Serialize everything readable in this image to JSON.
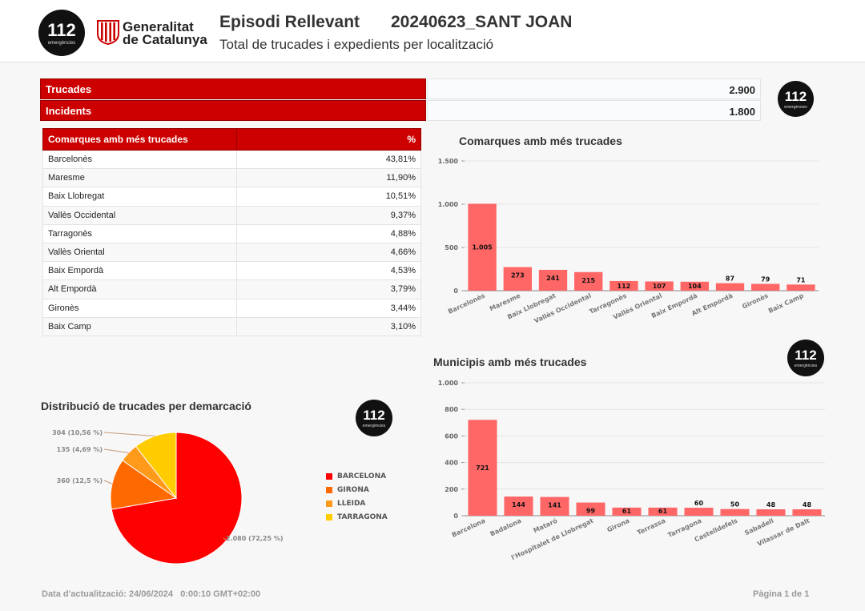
{
  "header": {
    "logo_112": "112",
    "logo_112_sub": "emergències",
    "gen_name_line1": "Generalitat",
    "gen_name_line2": "de Catalunya",
    "title": "Episodi Rellevant",
    "episode": "20240623_SANT JOAN",
    "subtitle": "Total de trucades i expedients per localització"
  },
  "kpis": {
    "trucades_label": "Trucades",
    "trucades_value": "2.900",
    "incidents_label": "Incidents",
    "incidents_value": "1.800"
  },
  "comarques_table": {
    "col_name": "Comarques amb més trucades",
    "col_pct": "%",
    "rows": [
      {
        "name": "Barcelonès",
        "pct": "43,81%"
      },
      {
        "name": "Maresme",
        "pct": "11,90%"
      },
      {
        "name": "Baix Llobregat",
        "pct": "10,51%"
      },
      {
        "name": "Vallès Occidental",
        "pct": "9,37%"
      },
      {
        "name": "Tarragonès",
        "pct": "4,88%"
      },
      {
        "name": "Vallès Oriental",
        "pct": "4,66%"
      },
      {
        "name": "Baix Empordà",
        "pct": "4,53%"
      },
      {
        "name": "Alt Empordà",
        "pct": "3,79%"
      },
      {
        "name": "Gironès",
        "pct": "3,44%"
      },
      {
        "name": "Baix Camp",
        "pct": "3,10%"
      }
    ]
  },
  "colors": {
    "accent": "#cc0000",
    "bar": "#ff6666",
    "barcelona": "#ff0000",
    "girona": "#ff6a00",
    "lleida": "#ff9a1a",
    "tarragona": "#ffcc00"
  },
  "chart_data": [
    {
      "id": "comarques",
      "type": "bar",
      "title": "Comarques amb més trucades",
      "categories": [
        "Barcelonès",
        "Maresme",
        "Baix Llobregat",
        "Vallès Occidental",
        "Tarragonès",
        "Vallès Oriental",
        "Baix Empordà",
        "Alt Empordà",
        "Gironès",
        "Baix Camp"
      ],
      "values": [
        1005,
        273,
        241,
        215,
        112,
        107,
        104,
        87,
        79,
        71
      ],
      "value_labels": [
        "1.005",
        "273",
        "241",
        "215",
        "112",
        "107",
        "104",
        "87",
        "79",
        "71"
      ],
      "yticks": [
        0,
        500,
        1000,
        1500
      ],
      "ytick_labels": [
        "0",
        "500",
        "1.000",
        "1.500"
      ],
      "ylim": [
        0,
        1500
      ],
      "grid": true
    },
    {
      "id": "municipis",
      "type": "bar",
      "title": "Municipis amb més trucades",
      "categories": [
        "Barcelona",
        "Badalona",
        "Mataró",
        "l'Hospitalet de Llobregat",
        "Girona",
        "Terrassa",
        "Tarragona",
        "Castelldefels",
        "Sabadell",
        "Vilassar de Dalt"
      ],
      "values": [
        721,
        144,
        141,
        99,
        61,
        61,
        60,
        50,
        48,
        48
      ],
      "value_labels": [
        "721",
        "144",
        "141",
        "99",
        "61",
        "61",
        "60",
        "50",
        "48",
        "48"
      ],
      "yticks": [
        0,
        200,
        400,
        600,
        800,
        1000
      ],
      "ytick_labels": [
        "0",
        "200",
        "400",
        "600",
        "800",
        "1.000"
      ],
      "ylim": [
        0,
        1000
      ],
      "grid": true
    },
    {
      "id": "demarcacio",
      "type": "pie",
      "title": "Distribució de trucades per demarcació",
      "categories": [
        "BARCELONA",
        "GIRONA",
        "LLEIDA",
        "TARRAGONA"
      ],
      "values": [
        2080,
        360,
        135,
        304
      ],
      "slice_labels": [
        "2.080 (72,25 %)",
        "360 (12,5 %)",
        "135 (4,69 %)",
        "304 (10,56 %)"
      ],
      "legend": "right"
    }
  ],
  "footer": {
    "updated": "Data d'actualització: 24/06/2024   0:00:10 GMT+02:00",
    "page": "Pàgina 1 de 1"
  }
}
